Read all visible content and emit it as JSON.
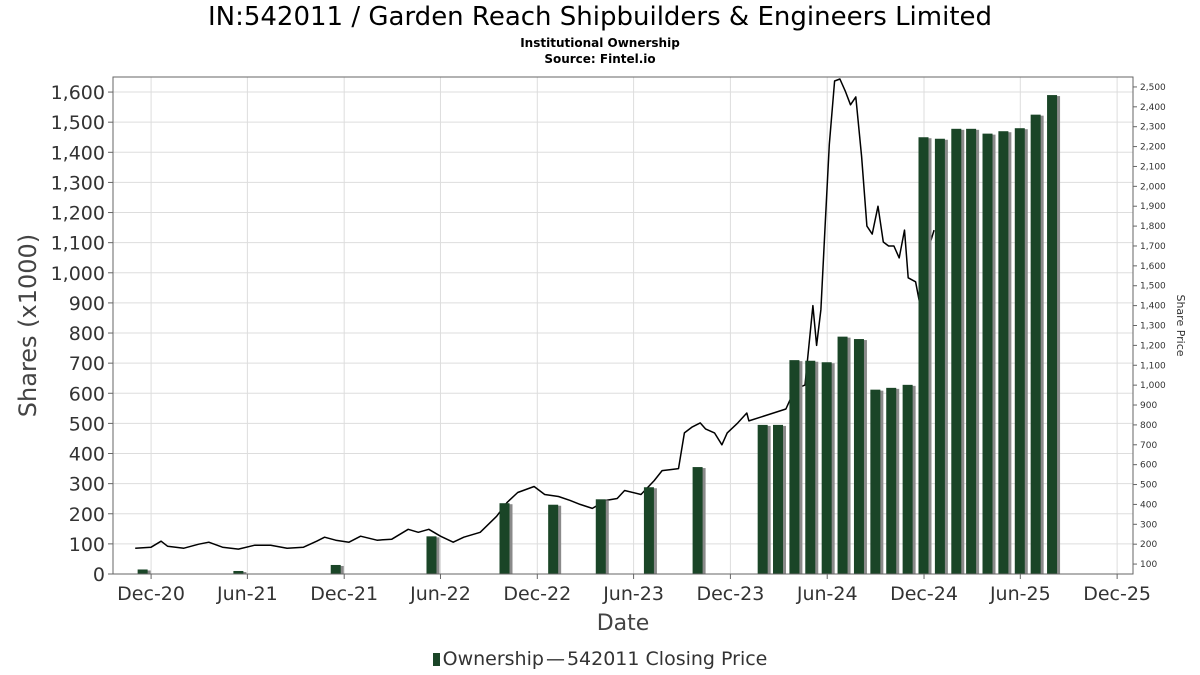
{
  "title": "IN:542011 / Garden Reach Shipbuilders & Engineers Limited",
  "subtitle1": "Institutional Ownership",
  "subtitle2": "Source: Fintel.io",
  "colors": {
    "bar": "#1a4527",
    "bar_shadow": "#8a8a8a",
    "line": "#000000",
    "grid": "#dddddd",
    "axis": "#666666"
  },
  "legend": {
    "ownership": "Ownership",
    "dash": "—",
    "price": "542011 Closing Price"
  },
  "chart_data": {
    "type": "bar",
    "title": "IN:542011 / Garden Reach Shipbuilders & Engineers Limited",
    "xlabel": "Date",
    "ylabel": "Shares (x1000)",
    "y2label": "Share Price",
    "ylim": [
      0,
      1650
    ],
    "y2lim": [
      50,
      2550
    ],
    "xlim": [
      "2020-09-20",
      "2025-12-31"
    ],
    "grid": true,
    "legend_position": "bottom",
    "x_ticks": [
      {
        "date": "2020-12-01",
        "label": "Dec-20"
      },
      {
        "date": "2021-06-01",
        "label": "Jun-21"
      },
      {
        "date": "2021-12-01",
        "label": "Dec-21"
      },
      {
        "date": "2022-06-01",
        "label": "Jun-22"
      },
      {
        "date": "2022-12-01",
        "label": "Dec-22"
      },
      {
        "date": "2023-06-01",
        "label": "Jun-23"
      },
      {
        "date": "2023-12-01",
        "label": "Dec-23"
      },
      {
        "date": "2024-06-01",
        "label": "Jun-24"
      },
      {
        "date": "2024-12-01",
        "label": "Dec-24"
      },
      {
        "date": "2025-06-01",
        "label": "Jun-25"
      },
      {
        "date": "2025-12-01",
        "label": "Dec-25"
      }
    ],
    "y_ticks": [
      0,
      100,
      200,
      300,
      400,
      500,
      600,
      700,
      800,
      900,
      1000,
      1100,
      1200,
      1300,
      1400,
      1500,
      1600
    ],
    "y_tick_labels": [
      "0",
      "100",
      "200",
      "300",
      "400",
      "500",
      "600",
      "700",
      "800",
      "900",
      "1,000",
      "1,100",
      "1,200",
      "1,300",
      "1,400",
      "1,500",
      "1,600"
    ],
    "y2_ticks": [
      100,
      200,
      300,
      400,
      500,
      600,
      700,
      800,
      900,
      1000,
      1100,
      1200,
      1300,
      1400,
      1500,
      1600,
      1700,
      1800,
      1900,
      2000,
      2100,
      2200,
      2300,
      2400,
      2500
    ],
    "y2_tick_labels": [
      "100",
      "200",
      "300",
      "400",
      "500",
      "600",
      "700",
      "800",
      "900",
      "1,000",
      "1,100",
      "1,200",
      "1,300",
      "1,400",
      "1,500",
      "1,600",
      "1,700",
      "1,800",
      "1,900",
      "2,000",
      "2,100",
      "2,200",
      "2,300",
      "2,400",
      "2,500"
    ],
    "series": [
      {
        "name": "Ownership",
        "type": "bar",
        "points": [
          {
            "x": "2020-11-15",
            "y": 15
          },
          {
            "x": "2021-05-15",
            "y": 10
          },
          {
            "x": "2021-11-15",
            "y": 30
          },
          {
            "x": "2022-05-15",
            "y": 125
          },
          {
            "x": "2022-09-30",
            "y": 235
          },
          {
            "x": "2022-12-31",
            "y": 230
          },
          {
            "x": "2023-03-31",
            "y": 248
          },
          {
            "x": "2023-06-30",
            "y": 288
          },
          {
            "x": "2023-09-30",
            "y": 355
          },
          {
            "x": "2024-01-31",
            "y": 495
          },
          {
            "x": "2024-02-29",
            "y": 495
          },
          {
            "x": "2024-03-31",
            "y": 710
          },
          {
            "x": "2024-04-30",
            "y": 708
          },
          {
            "x": "2024-05-31",
            "y": 703
          },
          {
            "x": "2024-06-30",
            "y": 788
          },
          {
            "x": "2024-07-31",
            "y": 780
          },
          {
            "x": "2024-08-31",
            "y": 612
          },
          {
            "x": "2024-09-30",
            "y": 618
          },
          {
            "x": "2024-10-31",
            "y": 628
          },
          {
            "x": "2024-11-30",
            "y": 1450
          },
          {
            "x": "2024-12-31",
            "y": 1445
          },
          {
            "x": "2025-01-31",
            "y": 1478
          },
          {
            "x": "2025-02-28",
            "y": 1478
          },
          {
            "x": "2025-03-31",
            "y": 1462
          },
          {
            "x": "2025-04-30",
            "y": 1470
          },
          {
            "x": "2025-05-31",
            "y": 1480
          },
          {
            "x": "2025-06-30",
            "y": 1525
          },
          {
            "x": "2025-07-31",
            "y": 1590
          }
        ]
      },
      {
        "name": "542011 Closing Price",
        "type": "line",
        "axis": "right",
        "points": [
          {
            "x": "2020-11-01",
            "y": 180
          },
          {
            "x": "2020-12-01",
            "y": 185
          },
          {
            "x": "2020-12-20",
            "y": 215
          },
          {
            "x": "2021-01-01",
            "y": 190
          },
          {
            "x": "2021-02-01",
            "y": 180
          },
          {
            "x": "2021-03-01",
            "y": 200
          },
          {
            "x": "2021-03-20",
            "y": 210
          },
          {
            "x": "2021-04-15",
            "y": 185
          },
          {
            "x": "2021-05-15",
            "y": 175
          },
          {
            "x": "2021-06-15",
            "y": 195
          },
          {
            "x": "2021-07-15",
            "y": 195
          },
          {
            "x": "2021-08-15",
            "y": 180
          },
          {
            "x": "2021-09-15",
            "y": 185
          },
          {
            "x": "2021-10-10",
            "y": 215
          },
          {
            "x": "2021-10-25",
            "y": 235
          },
          {
            "x": "2021-11-15",
            "y": 220
          },
          {
            "x": "2021-12-10",
            "y": 210
          },
          {
            "x": "2022-01-01",
            "y": 240
          },
          {
            "x": "2022-02-01",
            "y": 220
          },
          {
            "x": "2022-03-01",
            "y": 225
          },
          {
            "x": "2022-04-01",
            "y": 275
          },
          {
            "x": "2022-04-20",
            "y": 260
          },
          {
            "x": "2022-05-10",
            "y": 275
          },
          {
            "x": "2022-06-01",
            "y": 240
          },
          {
            "x": "2022-06-25",
            "y": 210
          },
          {
            "x": "2022-07-15",
            "y": 235
          },
          {
            "x": "2022-08-15",
            "y": 260
          },
          {
            "x": "2022-09-15",
            "y": 340
          },
          {
            "x": "2022-10-05",
            "y": 410
          },
          {
            "x": "2022-10-25",
            "y": 460
          },
          {
            "x": "2022-11-25",
            "y": 490
          },
          {
            "x": "2022-12-15",
            "y": 450
          },
          {
            "x": "2023-01-10",
            "y": 440
          },
          {
            "x": "2023-02-01",
            "y": 420
          },
          {
            "x": "2023-02-20",
            "y": 400
          },
          {
            "x": "2023-03-15",
            "y": 380
          },
          {
            "x": "2023-04-10",
            "y": 420
          },
          {
            "x": "2023-05-01",
            "y": 430
          },
          {
            "x": "2023-05-15",
            "y": 470
          },
          {
            "x": "2023-06-15",
            "y": 450
          },
          {
            "x": "2023-07-10",
            "y": 520
          },
          {
            "x": "2023-07-25",
            "y": 570
          },
          {
            "x": "2023-08-10",
            "y": 575
          },
          {
            "x": "2023-08-25",
            "y": 580
          },
          {
            "x": "2023-09-05",
            "y": 760
          },
          {
            "x": "2023-09-20",
            "y": 790
          },
          {
            "x": "2023-10-05",
            "y": 810
          },
          {
            "x": "2023-10-15",
            "y": 780
          },
          {
            "x": "2023-11-01",
            "y": 760
          },
          {
            "x": "2023-11-15",
            "y": 700
          },
          {
            "x": "2023-11-25",
            "y": 760
          },
          {
            "x": "2023-12-15",
            "y": 810
          },
          {
            "x": "2024-01-01",
            "y": 860
          },
          {
            "x": "2024-01-05",
            "y": 820
          },
          {
            "x": "2024-03-15",
            "y": 880
          },
          {
            "x": "2024-04-01",
            "y": 980
          },
          {
            "x": "2024-04-20",
            "y": 1000
          },
          {
            "x": "2024-05-05",
            "y": 1400
          },
          {
            "x": "2024-05-12",
            "y": 1200
          },
          {
            "x": "2024-05-20",
            "y": 1380
          },
          {
            "x": "2024-05-28",
            "y": 1800
          },
          {
            "x": "2024-06-05",
            "y": 2210
          },
          {
            "x": "2024-06-15",
            "y": 2530
          },
          {
            "x": "2024-06-25",
            "y": 2540
          },
          {
            "x": "2024-07-05",
            "y": 2480
          },
          {
            "x": "2024-07-15",
            "y": 2410
          },
          {
            "x": "2024-07-25",
            "y": 2450
          },
          {
            "x": "2024-08-05",
            "y": 2150
          },
          {
            "x": "2024-08-15",
            "y": 1800
          },
          {
            "x": "2024-08-25",
            "y": 1760
          },
          {
            "x": "2024-09-05",
            "y": 1900
          },
          {
            "x": "2024-09-15",
            "y": 1720
          },
          {
            "x": "2024-09-25",
            "y": 1700
          },
          {
            "x": "2024-10-05",
            "y": 1700
          },
          {
            "x": "2024-10-15",
            "y": 1640
          },
          {
            "x": "2024-10-25",
            "y": 1780
          },
          {
            "x": "2024-11-01",
            "y": 1540
          },
          {
            "x": "2024-11-15",
            "y": 1520
          },
          {
            "x": "2024-11-25",
            "y": 1380
          },
          {
            "x": "2024-12-05",
            "y": 1650
          },
          {
            "x": "2024-12-20",
            "y": 1780
          }
        ]
      }
    ]
  }
}
